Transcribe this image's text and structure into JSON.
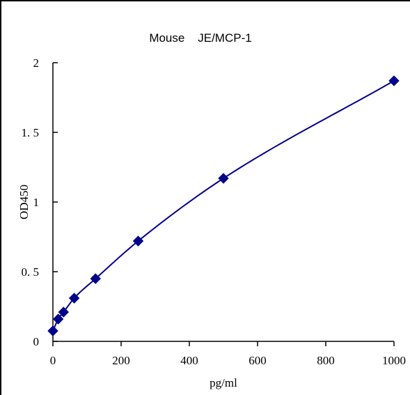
{
  "chart_data": {
    "type": "scatter",
    "title": "Mouse    JE/MCP-1",
    "xlabel": "pg/ml",
    "ylabel": "OD450",
    "xlim": [
      0,
      1000
    ],
    "ylim": [
      0,
      2
    ],
    "x_ticks": [
      "0",
      "200",
      "400",
      "600",
      "800",
      "1000"
    ],
    "y_ticks": [
      "0",
      "0. 5",
      "1",
      "1. 5",
      "2"
    ],
    "grid": false,
    "legend": "none",
    "series": [
      {
        "x": [
          0,
          15.6,
          31.2,
          62.5,
          125,
          250,
          500,
          1000
        ],
        "y": [
          0.075,
          0.16,
          0.21,
          0.31,
          0.45,
          0.72,
          1.17,
          1.87
        ],
        "color": "#00008b",
        "marker": "diamond",
        "line": "smooth"
      }
    ]
  }
}
